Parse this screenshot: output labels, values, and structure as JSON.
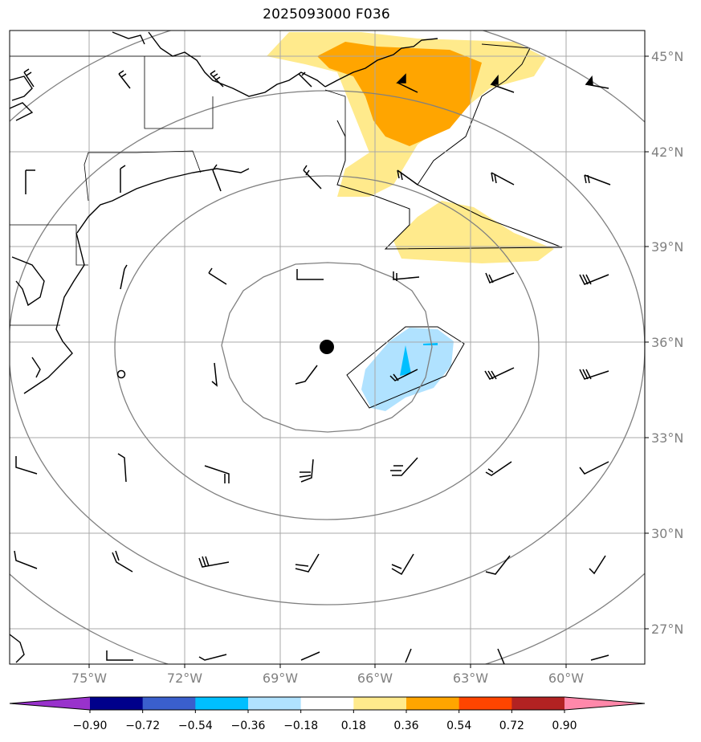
{
  "title": "2025093000 F036",
  "lat_labels": [
    "45°N",
    "42°N",
    "39°N",
    "36°N",
    "33°N",
    "30°N",
    "27°N"
  ],
  "lon_labels": [
    "75°W",
    "72°W",
    "69°W",
    "66°W",
    "63°W",
    "60°W"
  ],
  "colorbar": {
    "colors": [
      "#9932CC",
      "#00008B",
      "#3A5FCD",
      "#00BFFF",
      "#B0E2FF",
      "#FFFFFF",
      "#FFEA8C",
      "#FFA500",
      "#FF4500",
      "#B22222",
      "#FF88AA"
    ],
    "tick_labels": [
      "−0.90",
      "−0.72",
      "−0.54",
      "−0.36",
      "−0.18",
      "0.18",
      "0.36",
      "0.54",
      "0.72",
      "0.90"
    ]
  },
  "colors": {
    "grid": "#a0a0a0",
    "range_rings": "#808080",
    "coast": "#000000",
    "fill_light_yellow": "#FFEA8C",
    "fill_orange": "#FFA500",
    "fill_light_blue": "#B0E2FF",
    "fill_deep_sky": "#00BFFF"
  },
  "map": {
    "extent_lon": [
      -77.5,
      -57.5
    ],
    "extent_lat": [
      26,
      46
    ],
    "storm_center": {
      "lon": -67.5,
      "lat": 35.85
    }
  }
}
